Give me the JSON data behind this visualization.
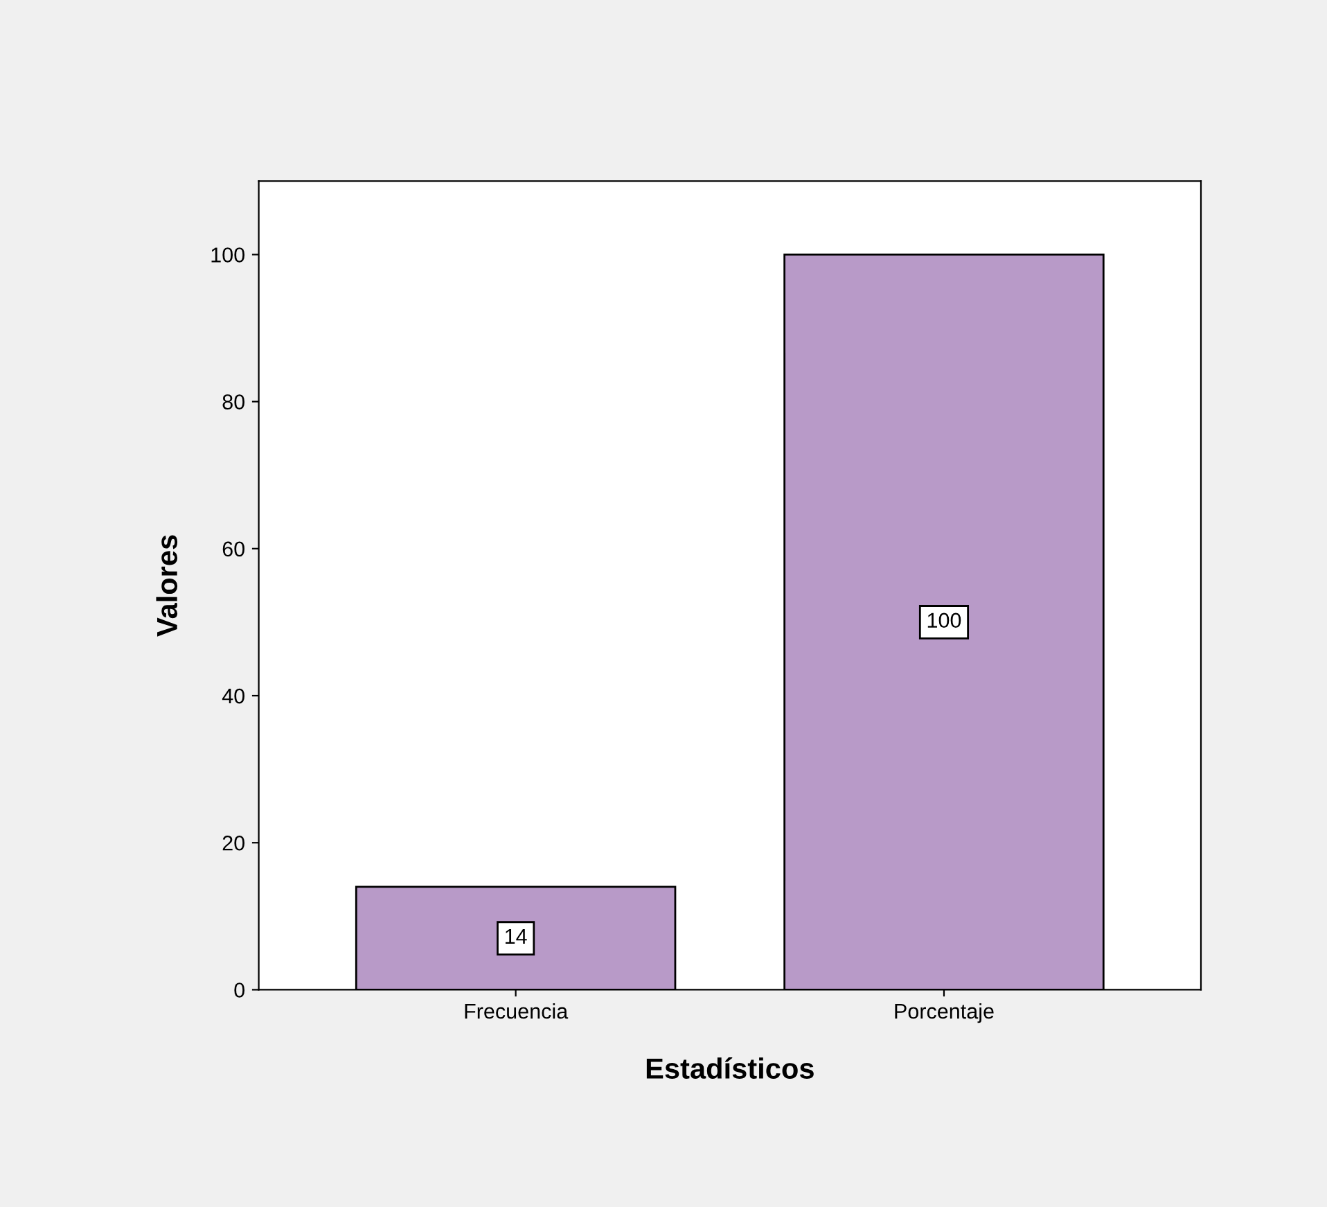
{
  "chart_data": {
    "type": "bar",
    "xlabel": "Estadísticos",
    "ylabel": "Valores",
    "categories": [
      "Frecuencia",
      "Porcentaje"
    ],
    "values": [
      14,
      100
    ],
    "color": "#b89ac8",
    "ylim": [
      0,
      110
    ],
    "yticks": [
      0,
      20,
      40,
      60,
      80,
      100
    ],
    "grid": false,
    "data_labels": true
  }
}
